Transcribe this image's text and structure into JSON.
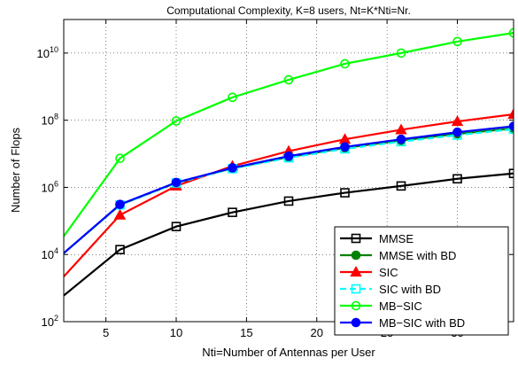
{
  "chart_data": {
    "type": "line",
    "title": "Computational Complexity, K=8 users, Nt=K*Nti=Nr.",
    "xlabel": "Nti=Number of Antennas per User",
    "ylabel": "Number of Flops",
    "xlim": [
      2,
      34
    ],
    "ylim": [
      100,
      100000000000
    ],
    "yscale": "log",
    "grid": true,
    "legend_position": "bottom-right",
    "x_ticks": [
      5,
      10,
      15,
      20,
      25,
      30
    ],
    "y_ticks": [
      {
        "value": 100,
        "base": "10",
        "exp": "2"
      },
      {
        "value": 10000,
        "base": "10",
        "exp": "4"
      },
      {
        "value": 1000000,
        "base": "10",
        "exp": "6"
      },
      {
        "value": 100000000,
        "base": "10",
        "exp": "8"
      },
      {
        "value": 10000000000,
        "base": "10",
        "exp": "10"
      }
    ],
    "series": [
      {
        "name": "MMSE",
        "color": "#000000",
        "marker": "square",
        "marker_fill": "none",
        "x": [
          2,
          6,
          10,
          14,
          18,
          22,
          26,
          30,
          34
        ],
        "y": [
          600,
          14000,
          68000,
          180000,
          390000,
          690000,
          1100000,
          1800000,
          2600000
        ]
      },
      {
        "name": "MMSE with BD",
        "color": "#008000",
        "marker": "circle",
        "marker_fill": "#008000",
        "x": [
          2,
          6,
          10,
          14,
          18,
          22,
          26,
          30,
          34
        ],
        "y": [
          11000,
          300000,
          1350000,
          3700000,
          8000000,
          15000000,
          25000000,
          39000000,
          57000000
        ]
      },
      {
        "name": "SIC",
        "color": "#ff0000",
        "marker": "triangle",
        "marker_fill": "#ff0000",
        "x": [
          2,
          6,
          10,
          14,
          18,
          22,
          26,
          30,
          34
        ],
        "y": [
          2200,
          150000,
          1100000,
          4300000,
          12000000,
          27000000,
          52000000,
          92000000,
          150000000
        ]
      },
      {
        "name": "SIC with BD",
        "color": "#00ffff",
        "marker": "square",
        "marker_fill": "none",
        "dashed": true,
        "x": [
          2,
          6,
          10,
          14,
          18,
          22,
          26,
          30,
          34
        ],
        "y": [
          11000,
          300000,
          1350000,
          3600000,
          7600000,
          14000000,
          23000000,
          36000000,
          54000000
        ]
      },
      {
        "name": "MB−SIC",
        "color": "#00ff00",
        "marker": "circle",
        "marker_fill": "none",
        "x": [
          2,
          6,
          10,
          14,
          18,
          22,
          26,
          30,
          34
        ],
        "y": [
          35000,
          7300000,
          95000000,
          480000000,
          1600000000,
          4800000000,
          10000000000,
          22000000000,
          40000000000
        ]
      },
      {
        "name": "MB−SIC with BD",
        "color": "#0000ff",
        "marker": "circle",
        "marker_fill": "#0000ff",
        "x": [
          2,
          6,
          10,
          14,
          18,
          22,
          26,
          30,
          34
        ],
        "y": [
          11000,
          310000,
          1400000,
          3800000,
          8500000,
          16000000,
          27000000,
          44000000,
          66000000
        ]
      }
    ]
  }
}
